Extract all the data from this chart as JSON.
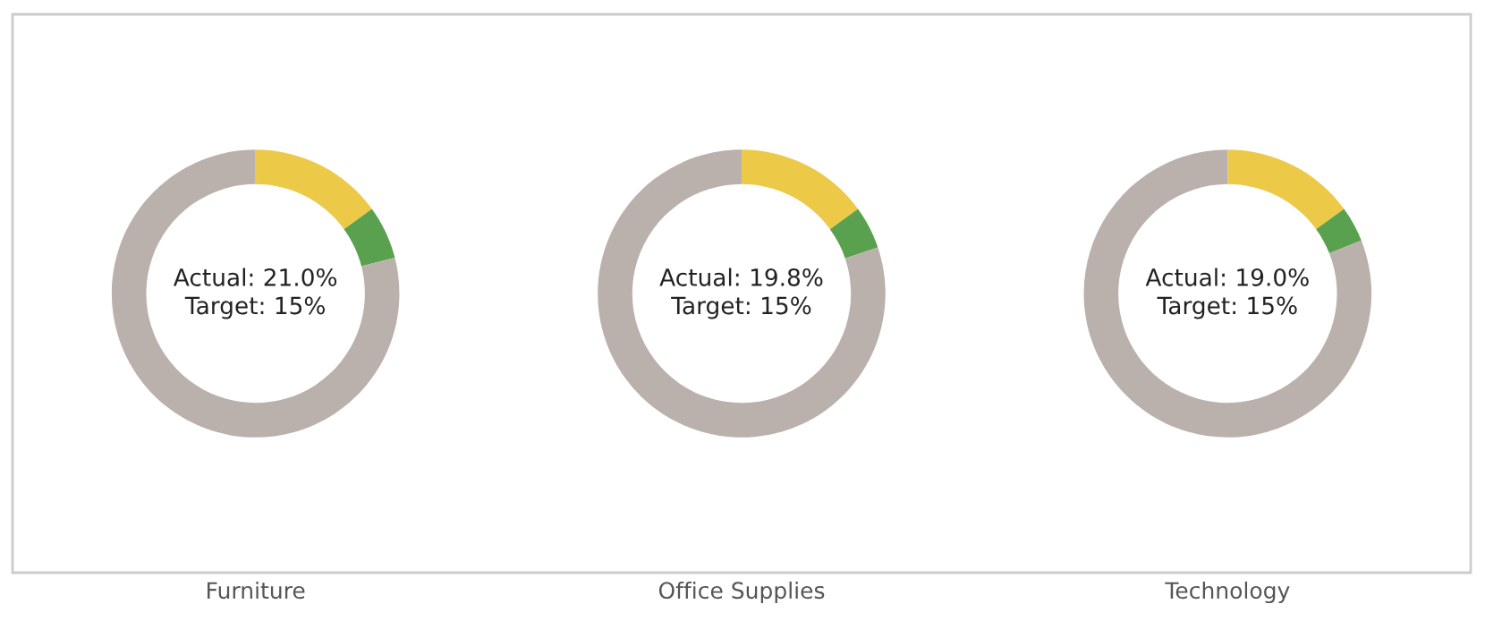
{
  "chart_data": [
    {
      "type": "donut",
      "categories": [
        null,
        null,
        null
      ],
      "values": [
        15,
        6.0,
        79.0
      ],
      "colors": [
        "#edc948",
        "#59a14f",
        "#bab0ac"
      ],
      "xlabel": "Furniture",
      "annotations": [
        "Actual: 21.0%\nTarget: 15%"
      ]
    },
    {
      "type": "donut",
      "categories": [
        null,
        null,
        null
      ],
      "values": [
        15,
        4.8,
        80.2
      ],
      "colors": [
        "#edc948",
        "#59a14f",
        "#bab0ac"
      ],
      "xlabel": "Office Supplies",
      "annotations": [
        "Actual: 19.8%\nTarget: 15%"
      ]
    },
    {
      "type": "donut",
      "categories": [
        null,
        null,
        null
      ],
      "values": [
        15,
        4.0,
        81.0
      ],
      "colors": [
        "#edc948",
        "#59a14f",
        "#bab0ac"
      ],
      "xlabel": "Technology",
      "annotations": [
        "Actual: 19.0%\nTarget: 15%"
      ]
    }
  ]
}
